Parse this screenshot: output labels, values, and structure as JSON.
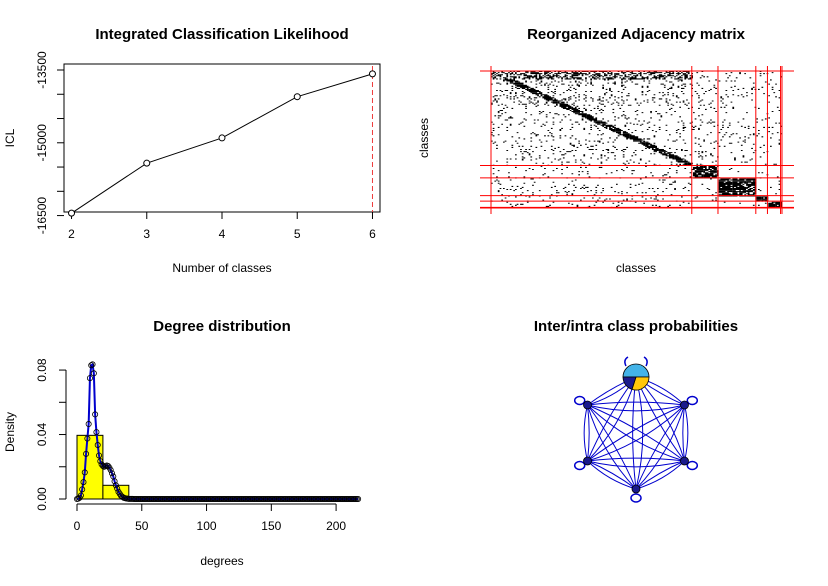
{
  "chart_data": [
    {
      "type": "line",
      "title": "Integrated Classification Likelihood",
      "xlabel": "Number of classes",
      "ylabel": "ICL",
      "x": [
        2,
        3,
        4,
        5,
        6
      ],
      "y": [
        -16450,
        -15420,
        -14900,
        -14050,
        -13580
      ],
      "xticks": [
        "2",
        "3",
        "4",
        "5",
        "6"
      ],
      "yticks": [
        "-16500",
        "-15000",
        "-13500"
      ],
      "yticks_minor": [
        -16000,
        -14500
      ],
      "xlim": [
        1.9,
        6.1
      ],
      "ylim": [
        -16550,
        -13500
      ],
      "selected_x": 6,
      "line_color": "#000000",
      "marker_line_color": "#ee3b3b"
    },
    {
      "type": "heatmap",
      "title": "Reorganized Adjacency matrix",
      "xlabel": "classes",
      "ylabel": "classes",
      "description_color": "#ff0000",
      "block_sizes_relative": [
        0.69,
        0.09,
        0.13,
        0.04,
        0.045,
        0.005
      ],
      "grid_color": "#ff0000"
    },
    {
      "type": "bar",
      "title": "Degree distribution",
      "xlabel": "degrees",
      "ylabel": "Density",
      "bins": [
        [
          0,
          20
        ],
        [
          20,
          40
        ],
        [
          40,
          60
        ],
        [
          60,
          80
        ],
        [
          80,
          100
        ],
        [
          100,
          120
        ],
        [
          120,
          140
        ],
        [
          140,
          160
        ],
        [
          160,
          180
        ],
        [
          180,
          200
        ],
        [
          200,
          220
        ]
      ],
      "values": [
        0.0395,
        0.0085,
        0.0003,
        0,
        0,
        0,
        0,
        0,
        0,
        0,
        0
      ],
      "xticks": [
        "0",
        "50",
        "100",
        "150",
        "200"
      ],
      "yticks": [
        "0.00",
        "0.04",
        "0.08"
      ],
      "xlim": [
        0,
        220
      ],
      "ylim": [
        0,
        0.085
      ],
      "bar_color": "#ffff00",
      "curve_color": "#0000cd",
      "curve_points": [
        [
          0,
          0.0
        ],
        [
          1,
          0.0002
        ],
        [
          2,
          0.0008
        ],
        [
          3,
          0.0022
        ],
        [
          4,
          0.006
        ],
        [
          5,
          0.0105
        ],
        [
          6,
          0.0165
        ],
        [
          7,
          0.028
        ],
        [
          8,
          0.0375
        ],
        [
          9,
          0.0465
        ],
        [
          10,
          0.075
        ],
        [
          11,
          0.083
        ],
        [
          12,
          0.0835
        ],
        [
          13,
          0.078
        ],
        [
          14,
          0.0525
        ],
        [
          15,
          0.0415
        ],
        [
          16,
          0.0335
        ],
        [
          17,
          0.027
        ],
        [
          18,
          0.0235
        ],
        [
          19,
          0.0215
        ],
        [
          20,
          0.0205
        ],
        [
          21,
          0.02
        ],
        [
          22,
          0.0205
        ],
        [
          23,
          0.0208
        ],
        [
          24,
          0.0205
        ],
        [
          25,
          0.0195
        ],
        [
          26,
          0.018
        ],
        [
          27,
          0.016
        ],
        [
          28,
          0.014
        ],
        [
          29,
          0.011
        ],
        [
          30,
          0.0085
        ],
        [
          32,
          0.0045
        ],
        [
          34,
          0.002
        ],
        [
          36,
          0.0008
        ],
        [
          38,
          0.0003
        ],
        [
          40,
          0.0001
        ],
        [
          45,
          0.0
        ]
      ],
      "circle_x_max": 217
    },
    {
      "type": "network",
      "title": "Inter/intra class probabilities",
      "nodes": 6,
      "edge_color": "#0000cd",
      "pie_colors": [
        "#43b3e8",
        "#ffc70a",
        "#1a1a8c"
      ],
      "pie_values": [
        0.5,
        0.3,
        0.2
      ]
    }
  ]
}
